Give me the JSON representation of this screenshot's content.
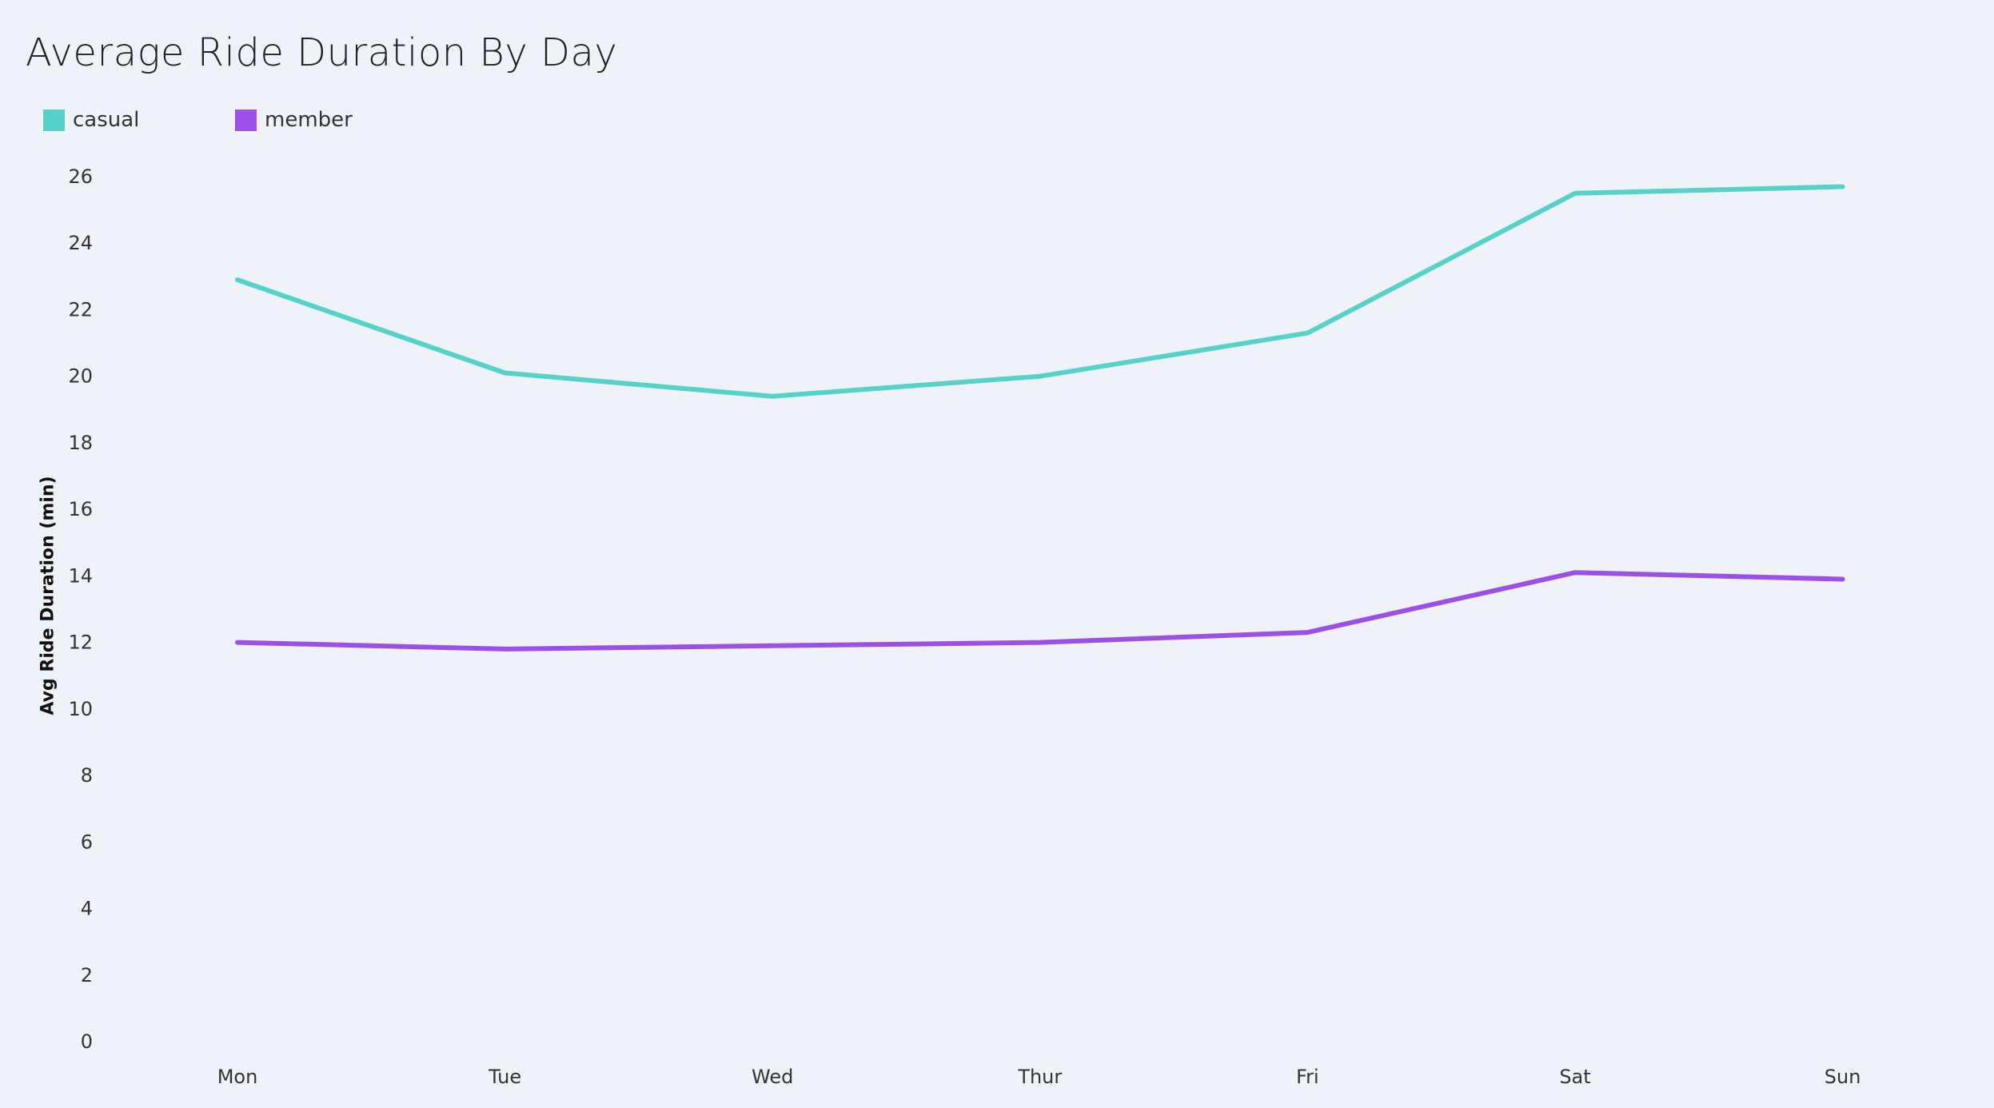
{
  "chart_data": {
    "type": "line",
    "title": "Average Ride Duration By Day",
    "xlabel": "",
    "ylabel": "Avg Ride Duration (min)",
    "categories": [
      "Mon",
      "Tue",
      "Wed",
      "Thur",
      "Fri",
      "Sat",
      "Sun"
    ],
    "series": [
      {
        "name": "casual",
        "color": "#56d2c8",
        "values": [
          22.9,
          20.1,
          19.4,
          20.0,
          21.3,
          25.5,
          25.7
        ]
      },
      {
        "name": "member",
        "color": "#9b51e8",
        "values": [
          12.0,
          11.8,
          11.9,
          12.0,
          12.3,
          14.1,
          13.9
        ]
      }
    ],
    "ylim": [
      0,
      26
    ],
    "yticks": [
      0,
      2,
      4,
      6,
      8,
      10,
      12,
      14,
      16,
      18,
      20,
      22,
      24,
      26
    ],
    "grid": false,
    "legend_position": "top-left"
  }
}
